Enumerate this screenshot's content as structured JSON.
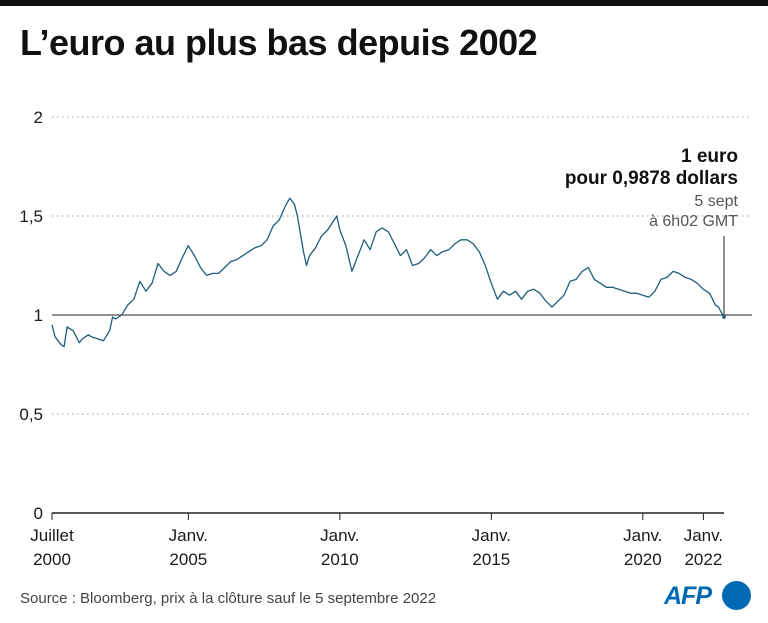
{
  "title": "L’euro au plus bas depuis 2002",
  "source": "Source : Bloomberg, prix à la clôture sauf le 5 septembre 2022",
  "logo": {
    "text": "AFP",
    "color": "#0069b4"
  },
  "colors": {
    "line": "#1f5f7a",
    "axis": "#222222",
    "grid": "#9a9a9a",
    "text": "#1a1a1a"
  },
  "annotation": {
    "line1": "1 euro",
    "line2": "pour 0,9878 dollars",
    "line3": "5 sept",
    "line4": "à 6h02 GMT"
  },
  "chart_data": {
    "type": "line",
    "title": "L’euro au plus bas depuis 2002",
    "ylim": [
      0,
      2
    ],
    "xlim": [
      2000.5,
      2022.68
    ],
    "grid": "dotted horizontal",
    "yticks": [
      {
        "value": 0,
        "label": "0"
      },
      {
        "value": 0.5,
        "label": "0,5"
      },
      {
        "value": 1,
        "label": "1"
      },
      {
        "value": 1.5,
        "label": "1,5"
      },
      {
        "value": 2,
        "label": "2"
      }
    ],
    "xticks": [
      {
        "value": 2000.5,
        "line1": "Juillet",
        "line2": "2000"
      },
      {
        "value": 2005,
        "line1": "Janv.",
        "line2": "2005"
      },
      {
        "value": 2010,
        "line1": "Janv.",
        "line2": "2010"
      },
      {
        "value": 2015,
        "line1": "Janv.",
        "line2": "2015"
      },
      {
        "value": 2020,
        "line1": "Janv.",
        "line2": "2020"
      },
      {
        "value": 2022,
        "line1": "Janv.",
        "line2": "2022"
      }
    ],
    "series": [
      {
        "x": [
          2000.5,
          2000.6,
          2000.8,
          2000.9,
          2001.0,
          2001.2,
          2001.4,
          2001.5,
          2001.7,
          2001.8,
          2002.0,
          2002.2,
          2002.4,
          2002.5,
          2002.6,
          2002.8,
          2003.0,
          2003.2,
          2003.4,
          2003.6,
          2003.8,
          2004.0,
          2004.2,
          2004.4,
          2004.6,
          2004.8,
          2005.0,
          2005.2,
          2005.4,
          2005.6,
          2005.8,
          2006.0,
          2006.2,
          2006.4,
          2006.6,
          2006.8,
          2007.0,
          2007.2,
          2007.4,
          2007.6,
          2007.8,
          2008.0,
          2008.2,
          2008.35,
          2008.5,
          2008.6,
          2008.8,
          2008.9,
          2009.0,
          2009.2,
          2009.4,
          2009.6,
          2009.9,
          2010.0,
          2010.2,
          2010.4,
          2010.5,
          2010.6,
          2010.8,
          2011.0,
          2011.2,
          2011.4,
          2011.6,
          2011.8,
          2012.0,
          2012.2,
          2012.4,
          2012.6,
          2012.8,
          2013.0,
          2013.2,
          2013.4,
          2013.6,
          2013.8,
          2014.0,
          2014.2,
          2014.4,
          2014.6,
          2014.8,
          2015.0,
          2015.2,
          2015.4,
          2015.6,
          2015.8,
          2016.0,
          2016.2,
          2016.4,
          2016.6,
          2016.8,
          2017.0,
          2017.2,
          2017.4,
          2017.6,
          2017.8,
          2018.0,
          2018.2,
          2018.4,
          2018.6,
          2018.8,
          2019.0,
          2019.2,
          2019.4,
          2019.6,
          2019.8,
          2020.0,
          2020.2,
          2020.4,
          2020.6,
          2020.8,
          2021.0,
          2021.2,
          2021.4,
          2021.6,
          2021.8,
          2022.0,
          2022.2,
          2022.4,
          2022.5,
          2022.6,
          2022.68
        ],
        "y": [
          0.95,
          0.89,
          0.85,
          0.84,
          0.94,
          0.92,
          0.86,
          0.88,
          0.9,
          0.89,
          0.88,
          0.87,
          0.92,
          0.99,
          0.98,
          1.0,
          1.05,
          1.08,
          1.17,
          1.12,
          1.16,
          1.26,
          1.22,
          1.2,
          1.22,
          1.29,
          1.35,
          1.3,
          1.24,
          1.2,
          1.21,
          1.21,
          1.24,
          1.27,
          1.28,
          1.3,
          1.32,
          1.34,
          1.35,
          1.38,
          1.45,
          1.48,
          1.55,
          1.59,
          1.56,
          1.5,
          1.32,
          1.25,
          1.3,
          1.34,
          1.4,
          1.43,
          1.5,
          1.43,
          1.35,
          1.22,
          1.26,
          1.3,
          1.38,
          1.33,
          1.42,
          1.44,
          1.42,
          1.36,
          1.3,
          1.33,
          1.25,
          1.26,
          1.29,
          1.33,
          1.3,
          1.32,
          1.33,
          1.36,
          1.38,
          1.38,
          1.36,
          1.32,
          1.25,
          1.16,
          1.08,
          1.12,
          1.1,
          1.12,
          1.08,
          1.12,
          1.13,
          1.11,
          1.07,
          1.04,
          1.07,
          1.1,
          1.17,
          1.18,
          1.22,
          1.24,
          1.18,
          1.16,
          1.14,
          1.14,
          1.13,
          1.12,
          1.11,
          1.11,
          1.1,
          1.09,
          1.12,
          1.18,
          1.19,
          1.22,
          1.21,
          1.19,
          1.18,
          1.16,
          1.13,
          1.11,
          1.05,
          1.04,
          1.01,
          0.99
        ]
      }
    ]
  }
}
